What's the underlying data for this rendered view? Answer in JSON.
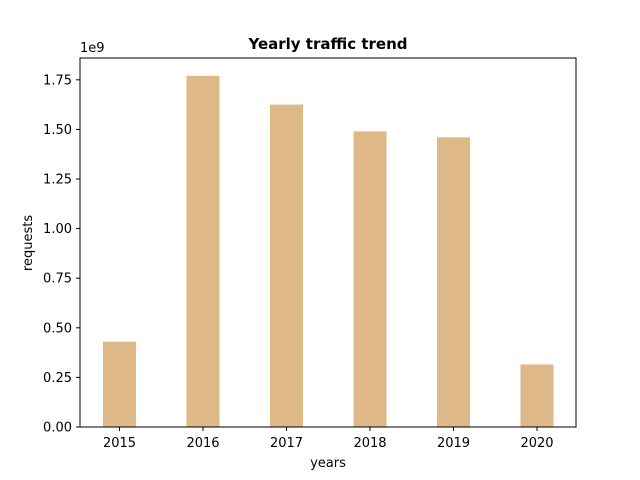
{
  "chart_data": {
    "type": "bar",
    "title": "Yearly traffic trend",
    "xlabel": "years",
    "ylabel": "requests",
    "offset_label": "1e9",
    "categories": [
      "2015",
      "2016",
      "2017",
      "2018",
      "2019",
      "2020"
    ],
    "values": [
      430000000,
      1770000000,
      1625000000,
      1490000000,
      1460000000,
      315000000
    ],
    "ylim": [
      0,
      1.86
    ],
    "yticks": [
      0.0,
      0.25,
      0.5,
      0.75,
      1.0,
      1.25,
      1.5,
      1.75
    ],
    "ytick_labels": [
      "0.00",
      "0.25",
      "0.50",
      "0.75",
      "1.00",
      "1.25",
      "1.50",
      "1.75"
    ],
    "bar_color": "#deb887",
    "grid": false,
    "legend": "none"
  }
}
